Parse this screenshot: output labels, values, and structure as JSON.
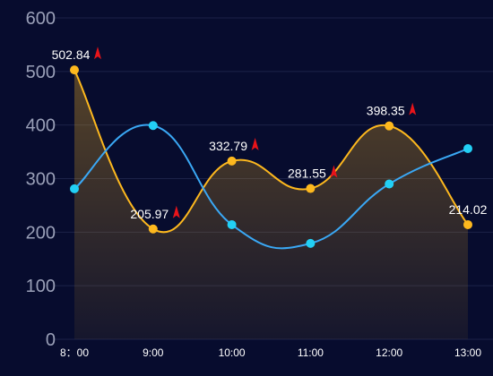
{
  "chart_data": {
    "type": "line",
    "categories": [
      "8：00",
      "9:00",
      "10:00",
      "11:00",
      "12:00",
      "13:00"
    ],
    "ylim": [
      0,
      600
    ],
    "yticks": [
      "0",
      "100",
      "200",
      "300",
      "400",
      "500",
      "600"
    ],
    "grid": true,
    "series": [
      {
        "color": "#fdb81e",
        "area": true,
        "values": [
          502.84,
          205.97,
          332.79,
          281.55,
          398.35,
          214.02
        ],
        "labels": [
          "502.84",
          "205.97",
          "332.79",
          "281.55",
          "398.35",
          "214.02"
        ],
        "marker_icon": "red-arrow-up-icon"
      },
      {
        "color": "#3aa8f5",
        "point_color": "#22d0f5",
        "area": false,
        "values": [
          281,
          399,
          214,
          179,
          290,
          356
        ]
      }
    ],
    "colors": {
      "background": "#070c2e",
      "grid": "#1c2248",
      "arrow": "#e8141a"
    }
  }
}
